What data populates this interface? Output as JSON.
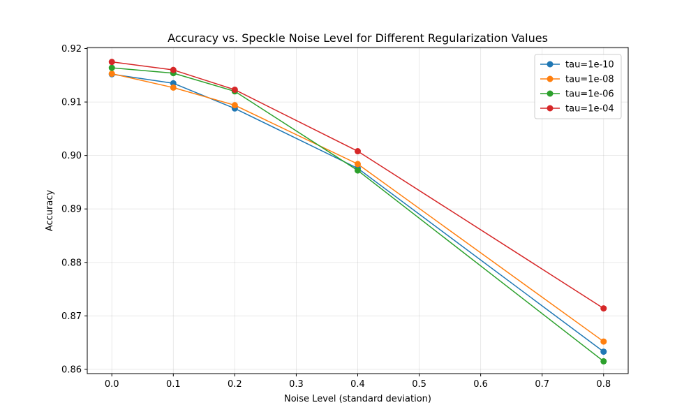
{
  "chart_data": {
    "type": "line",
    "title": "Accuracy vs. Speckle Noise Level for Different Regularization Values",
    "xlabel": "Noise Level (standard deviation)",
    "ylabel": "Accuracy",
    "x": [
      0.0,
      0.1,
      0.2,
      0.4,
      0.8
    ],
    "xlim": [
      -0.04,
      0.84
    ],
    "ylim": [
      0.8592,
      0.9202
    ],
    "xticks": [
      0.0,
      0.1,
      0.2,
      0.3,
      0.4,
      0.5,
      0.6,
      0.7,
      0.8
    ],
    "xtick_labels": [
      "0.0",
      "0.1",
      "0.2",
      "0.3",
      "0.4",
      "0.5",
      "0.6",
      "0.7",
      "0.8"
    ],
    "yticks": [
      0.86,
      0.87,
      0.88,
      0.89,
      0.9,
      0.91,
      0.92
    ],
    "ytick_labels": [
      "0.86",
      "0.87",
      "0.88",
      "0.89",
      "0.90",
      "0.91",
      "0.92"
    ],
    "grid": true,
    "legend_position": "top-right",
    "series": [
      {
        "name": "tau=1e-10",
        "color": "#1f77b4",
        "values": [
          0.9152,
          0.9135,
          0.9088,
          0.8976,
          0.8633
        ]
      },
      {
        "name": "tau=1e-08",
        "color": "#ff7f0e",
        "values": [
          0.9153,
          0.9127,
          0.9094,
          0.8984,
          0.8652
        ]
      },
      {
        "name": "tau=1e-06",
        "color": "#2ca02c",
        "values": [
          0.9164,
          0.9154,
          0.912,
          0.8972,
          0.8615
        ]
      },
      {
        "name": "tau=1e-04",
        "color": "#d62728",
        "values": [
          0.9175,
          0.916,
          0.9123,
          0.9008,
          0.8714
        ]
      }
    ]
  }
}
